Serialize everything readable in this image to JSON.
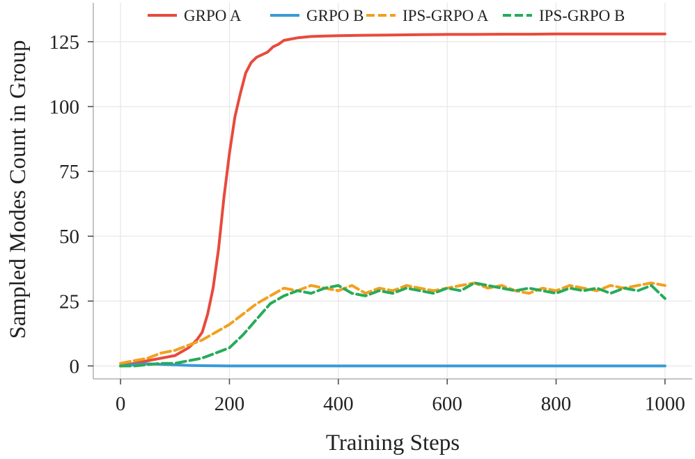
{
  "chart_data": {
    "type": "line",
    "title": "",
    "xlabel": "Training Steps",
    "ylabel": "Sampled Modes Count in Group",
    "xlim": [
      -50,
      1050
    ],
    "ylim": [
      -5,
      140
    ],
    "xticks": [
      0,
      200,
      400,
      600,
      800,
      1000
    ],
    "yticks": [
      0,
      25,
      50,
      75,
      100,
      125
    ],
    "xtick_labels": [
      "0",
      "200",
      "400",
      "600",
      "800",
      "1000"
    ],
    "ytick_labels": [
      "0",
      "25",
      "50",
      "75",
      "100",
      "125"
    ],
    "grid": true,
    "legend_position": "top",
    "series": [
      {
        "name": "GRPO A",
        "color": "#e84a3c",
        "dash": "solid",
        "x": [
          0,
          25,
          50,
          75,
          100,
          125,
          140,
          150,
          160,
          170,
          180,
          190,
          200,
          210,
          220,
          230,
          240,
          250,
          260,
          270,
          280,
          290,
          300,
          325,
          350,
          375,
          400,
          450,
          500,
          550,
          600,
          650,
          700,
          750,
          800,
          850,
          900,
          950,
          1000
        ],
        "y": [
          0,
          1,
          2,
          3,
          4,
          7,
          10,
          13,
          20,
          30,
          45,
          65,
          82,
          96,
          105,
          113,
          117,
          119,
          120,
          121,
          123,
          124,
          125.5,
          126.5,
          127,
          127.2,
          127.3,
          127.5,
          127.6,
          127.7,
          127.8,
          127.8,
          127.9,
          127.9,
          128,
          128,
          128,
          128,
          128
        ]
      },
      {
        "name": "GRPO B",
        "color": "#3a99d8",
        "dash": "solid",
        "x": [
          0,
          25,
          50,
          75,
          100,
          125,
          150,
          200,
          300,
          400,
          500,
          600,
          700,
          800,
          900,
          1000
        ],
        "y": [
          0,
          0.5,
          0.8,
          0.6,
          0.4,
          0.2,
          0.1,
          0,
          0,
          0,
          0,
          0,
          0,
          0,
          0,
          0
        ]
      },
      {
        "name": "IPS-GRPO A",
        "color": "#f2a01e",
        "dash": "dashed",
        "x": [
          0,
          25,
          50,
          75,
          100,
          125,
          150,
          175,
          200,
          225,
          250,
          275,
          300,
          325,
          350,
          375,
          400,
          425,
          450,
          475,
          500,
          525,
          550,
          575,
          600,
          625,
          650,
          675,
          700,
          725,
          750,
          775,
          800,
          825,
          850,
          875,
          900,
          925,
          950,
          975,
          1000
        ],
        "y": [
          1,
          2,
          3,
          5,
          6,
          8,
          10,
          13,
          16,
          20,
          24,
          27,
          30,
          29,
          31,
          30,
          29,
          31,
          28,
          30,
          29,
          31,
          30,
          29,
          30,
          31,
          32,
          30,
          31,
          29,
          28,
          30,
          29,
          31,
          30,
          29,
          31,
          30,
          31,
          32,
          31
        ]
      },
      {
        "name": "IPS-GRPO B",
        "color": "#27ab5a",
        "dash": "dashed",
        "x": [
          0,
          25,
          50,
          75,
          100,
          125,
          150,
          175,
          200,
          225,
          250,
          275,
          300,
          325,
          350,
          375,
          400,
          425,
          450,
          475,
          500,
          525,
          550,
          575,
          600,
          625,
          650,
          675,
          700,
          725,
          750,
          775,
          800,
          825,
          850,
          875,
          900,
          925,
          950,
          975,
          1000
        ],
        "y": [
          0,
          0,
          0.5,
          1,
          1,
          2,
          3,
          5,
          7,
          12,
          18,
          24,
          27,
          29,
          28,
          30,
          31,
          28,
          27,
          29,
          28,
          30,
          29,
          28,
          30,
          29,
          32,
          31,
          30,
          29,
          30,
          29,
          28,
          30,
          29,
          30,
          28,
          30,
          29,
          31,
          26
        ]
      }
    ]
  }
}
